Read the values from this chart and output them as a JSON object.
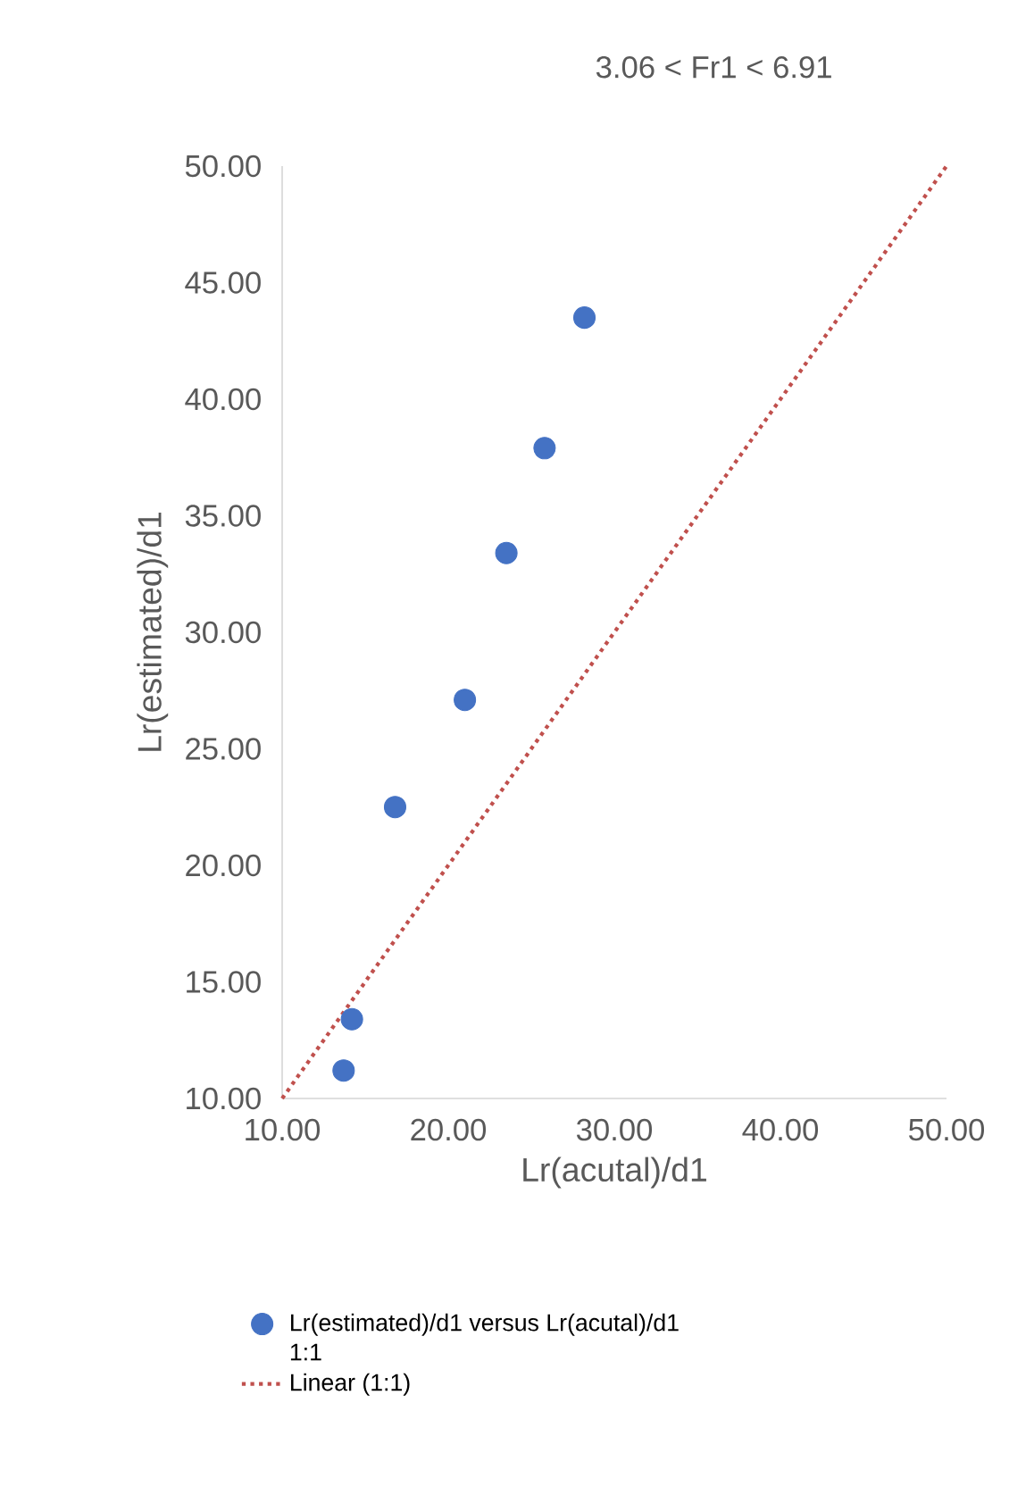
{
  "chart_data": {
    "type": "scatter",
    "title": "3.06 < Fr1 < 6.91",
    "xlabel": "Lr(acutal)/d1",
    "ylabel": "Lr(estimated)/d1",
    "xlim": [
      10,
      50
    ],
    "ylim": [
      10,
      50
    ],
    "xticks": [
      {
        "value": 10,
        "label": "10.00"
      },
      {
        "value": 20,
        "label": "20.00"
      },
      {
        "value": 30,
        "label": "30.00"
      },
      {
        "value": 40,
        "label": "40.00"
      },
      {
        "value": 50,
        "label": "50.00"
      }
    ],
    "yticks": [
      {
        "value": 10,
        "label": "10.00"
      },
      {
        "value": 15,
        "label": "15.00"
      },
      {
        "value": 20,
        "label": "20.00"
      },
      {
        "value": 25,
        "label": "25.00"
      },
      {
        "value": 30,
        "label": "30.00"
      },
      {
        "value": 35,
        "label": "35.00"
      },
      {
        "value": 40,
        "label": "40.00"
      },
      {
        "value": 45,
        "label": "45.00"
      },
      {
        "value": 50,
        "label": "50.00"
      }
    ],
    "grid": false,
    "legend": "bottom",
    "annotations": [
      "1:1"
    ],
    "series": [
      {
        "name": "Lr(estimated)/d1 versus Lr(acutal)/d1",
        "marker": "circle",
        "color": "#4472c4",
        "x": [
          13.7,
          14.2,
          16.8,
          21.0,
          23.5,
          25.8,
          28.2
        ],
        "values": [
          11.2,
          13.4,
          22.5,
          27.1,
          33.4,
          37.9,
          43.5
        ]
      },
      {
        "name": "Linear (1:1)",
        "type": "line",
        "marker": "none",
        "line_style": "dotted",
        "color": "#c0504d",
        "x": [
          10,
          50
        ],
        "values": [
          10,
          50
        ]
      }
    ]
  }
}
